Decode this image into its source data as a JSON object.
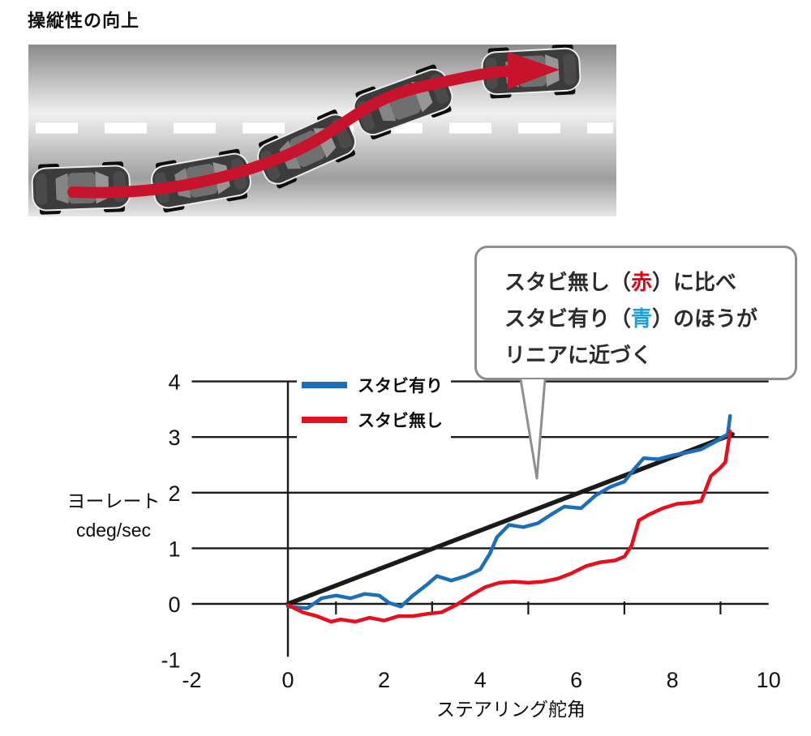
{
  "page": {
    "title": "操縦性の向上"
  },
  "road": {
    "description": "lane-change maneuver illustration",
    "car_count": 5,
    "arrow_color": "#c9132c",
    "lane_line_color": "#ffffff"
  },
  "callout": {
    "line1": {
      "pre": "スタビ無し（",
      "em": "赤",
      "post": "）に比べ",
      "em_color": "#e60012"
    },
    "line2": {
      "pre": "スタビ有り（",
      "em": "青",
      "post": "）のほうが",
      "em_color": "#1e9cd7"
    },
    "line3": "リニアに近づく"
  },
  "chart_data": {
    "type": "line",
    "title": "",
    "xlabel": "ステアリング舵角",
    "ylabel_line1": "ヨーレート",
    "ylabel_line2": "cdeg/sec",
    "xlim": [
      -2,
      10
    ],
    "ylim": [
      -1,
      4
    ],
    "grid": true,
    "legend_position": "top-inside",
    "x_ticks": [
      "-2",
      "0",
      "2",
      "4",
      "6",
      "8",
      "10"
    ],
    "x_tick_values": [
      -2,
      0,
      2,
      4,
      6,
      8,
      10
    ],
    "y_ticks": [
      "4",
      "3",
      "2",
      "1",
      "0",
      "-1"
    ],
    "y_tick_values": [
      4,
      3,
      2,
      1,
      0,
      -1
    ],
    "gridlines_y": [
      0,
      1,
      2,
      3,
      4
    ],
    "minor_ticks_x": [
      1,
      3,
      5,
      7,
      9
    ],
    "legend": [
      {
        "label": "スタビ有り",
        "color": "#1c6fb6"
      },
      {
        "label": "スタビ無し",
        "color": "#e60f1e"
      }
    ],
    "series": [
      {
        "name": "linear-reference",
        "color": "#1a1a1a",
        "width": 5.5,
        "points": [
          [
            0,
            0
          ],
          [
            9.25,
            3.05
          ]
        ]
      },
      {
        "name": "スタビ有り",
        "color": "#1c6fb6",
        "width": 4.5,
        "points": [
          [
            0,
            -0.05
          ],
          [
            0.4,
            -0.08
          ],
          [
            0.7,
            0.1
          ],
          [
            1.0,
            0.15
          ],
          [
            1.3,
            0.1
          ],
          [
            1.6,
            0.18
          ],
          [
            1.9,
            0.15
          ],
          [
            2.1,
            0.02
          ],
          [
            2.35,
            -0.05
          ],
          [
            2.6,
            0.15
          ],
          [
            2.9,
            0.35
          ],
          [
            3.1,
            0.5
          ],
          [
            3.4,
            0.42
          ],
          [
            3.7,
            0.5
          ],
          [
            4.0,
            0.62
          ],
          [
            4.2,
            0.9
          ],
          [
            4.35,
            1.2
          ],
          [
            4.6,
            1.42
          ],
          [
            4.9,
            1.38
          ],
          [
            5.2,
            1.45
          ],
          [
            5.5,
            1.62
          ],
          [
            5.75,
            1.75
          ],
          [
            6.1,
            1.72
          ],
          [
            6.4,
            1.95
          ],
          [
            6.7,
            2.1
          ],
          [
            7.0,
            2.2
          ],
          [
            7.2,
            2.42
          ],
          [
            7.4,
            2.62
          ],
          [
            7.7,
            2.6
          ],
          [
            8.0,
            2.67
          ],
          [
            8.3,
            2.72
          ],
          [
            8.6,
            2.78
          ],
          [
            8.9,
            2.92
          ],
          [
            9.05,
            3.0
          ],
          [
            9.15,
            3.05
          ],
          [
            9.2,
            3.38
          ]
        ]
      },
      {
        "name": "スタビ無し",
        "color": "#e60f1e",
        "width": 4.5,
        "points": [
          [
            0,
            -0.02
          ],
          [
            0.3,
            -0.15
          ],
          [
            0.6,
            -0.22
          ],
          [
            0.9,
            -0.32
          ],
          [
            1.1,
            -0.28
          ],
          [
            1.4,
            -0.32
          ],
          [
            1.7,
            -0.25
          ],
          [
            2.0,
            -0.3
          ],
          [
            2.3,
            -0.22
          ],
          [
            2.6,
            -0.22
          ],
          [
            2.9,
            -0.18
          ],
          [
            3.2,
            -0.15
          ],
          [
            3.5,
            -0.02
          ],
          [
            3.8,
            0.15
          ],
          [
            4.1,
            0.3
          ],
          [
            4.4,
            0.38
          ],
          [
            4.7,
            0.4
          ],
          [
            5.0,
            0.38
          ],
          [
            5.3,
            0.4
          ],
          [
            5.6,
            0.45
          ],
          [
            5.9,
            0.55
          ],
          [
            6.2,
            0.68
          ],
          [
            6.5,
            0.75
          ],
          [
            6.8,
            0.78
          ],
          [
            7.0,
            0.85
          ],
          [
            7.15,
            1.05
          ],
          [
            7.3,
            1.5
          ],
          [
            7.5,
            1.6
          ],
          [
            7.8,
            1.72
          ],
          [
            8.1,
            1.8
          ],
          [
            8.4,
            1.82
          ],
          [
            8.6,
            1.85
          ],
          [
            8.8,
            2.3
          ],
          [
            9.0,
            2.45
          ],
          [
            9.1,
            2.55
          ],
          [
            9.2,
            3.1
          ]
        ]
      }
    ]
  }
}
